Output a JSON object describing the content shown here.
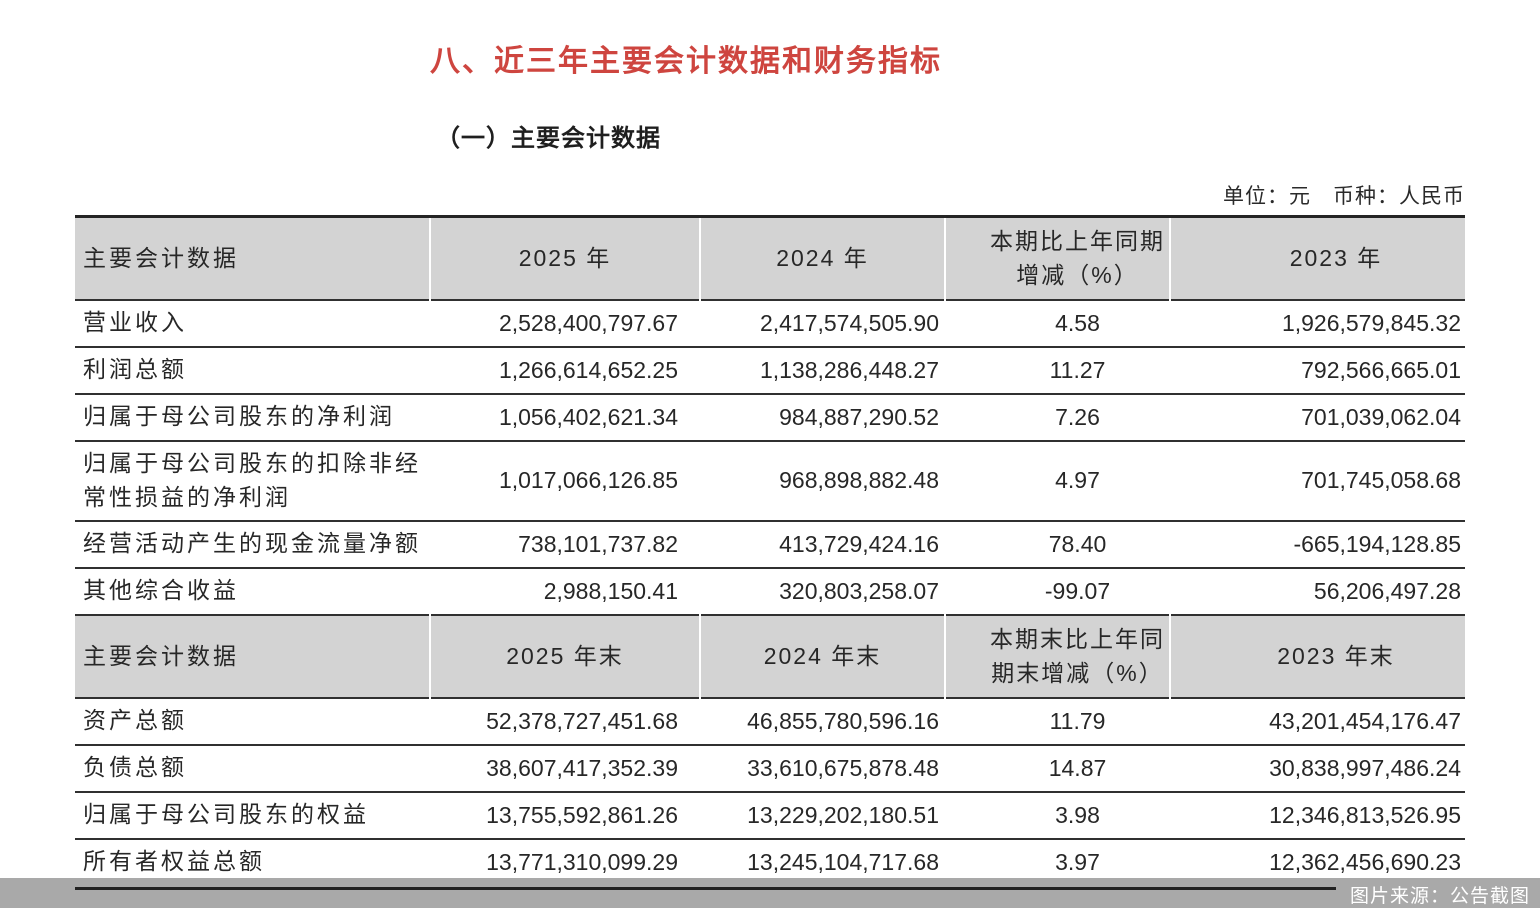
{
  "doc": {
    "title": "八、近三年主要会计数据和财务指标",
    "subtitle": "（一）主要会计数据",
    "unit_note": "单位：元　币种：人民币",
    "source_note": "图片来源：公告截图",
    "accent_color": "#ce453f",
    "header_bg": "#d3d3d3",
    "strip_bg": "#a9a9a9"
  },
  "table": {
    "sections": [
      {
        "header": [
          "主要会计数据",
          "2025 年",
          "2024 年",
          "本期比上年同期\n增减（%）",
          "2023 年"
        ],
        "rows": [
          {
            "cells": [
              "营业收入",
              "2,528,400,797.67",
              "2,417,574,505.90",
              "4.58",
              "1,926,579,845.32"
            ]
          },
          {
            "cells": [
              "利润总额",
              "1,266,614,652.25",
              "1,138,286,448.27",
              "11.27",
              "792,566,665.01"
            ]
          },
          {
            "cells": [
              "归属于母公司股东的净利润",
              "1,056,402,621.34",
              "984,887,290.52",
              "7.26",
              "701,039,062.04"
            ]
          },
          {
            "cells": [
              "归属于母公司股东的扣除非经常性损益的净利润",
              "1,017,066,126.85",
              "968,898,882.48",
              "4.97",
              "701,745,058.68"
            ],
            "tall": true
          },
          {
            "cells": [
              "经营活动产生的现金流量净额",
              "738,101,737.82",
              "413,729,424.16",
              "78.40",
              "-665,194,128.85"
            ]
          },
          {
            "cells": [
              "其他综合收益",
              "2,988,150.41",
              "320,803,258.07",
              "-99.07",
              "56,206,497.28"
            ]
          }
        ]
      },
      {
        "header": [
          "主要会计数据",
          "2025 年末",
          "2024 年末",
          "本期末比上年同\n期末增减（%）",
          "2023 年末"
        ],
        "rows": [
          {
            "cells": [
              "资产总额",
              "52,378,727,451.68",
              "46,855,780,596.16",
              "11.79",
              "43,201,454,176.47"
            ]
          },
          {
            "cells": [
              "负债总额",
              "38,607,417,352.39",
              "33,610,675,878.48",
              "14.87",
              "30,838,997,486.24"
            ]
          },
          {
            "cells": [
              "归属于母公司股东的权益",
              "13,755,592,861.26",
              "13,229,202,180.51",
              "3.98",
              "12,346,813,526.95"
            ]
          },
          {
            "cells": [
              "所有者权益总额",
              "13,771,310,099.29",
              "13,245,104,717.68",
              "3.97",
              "12,362,456,690.23"
            ]
          }
        ]
      }
    ]
  }
}
